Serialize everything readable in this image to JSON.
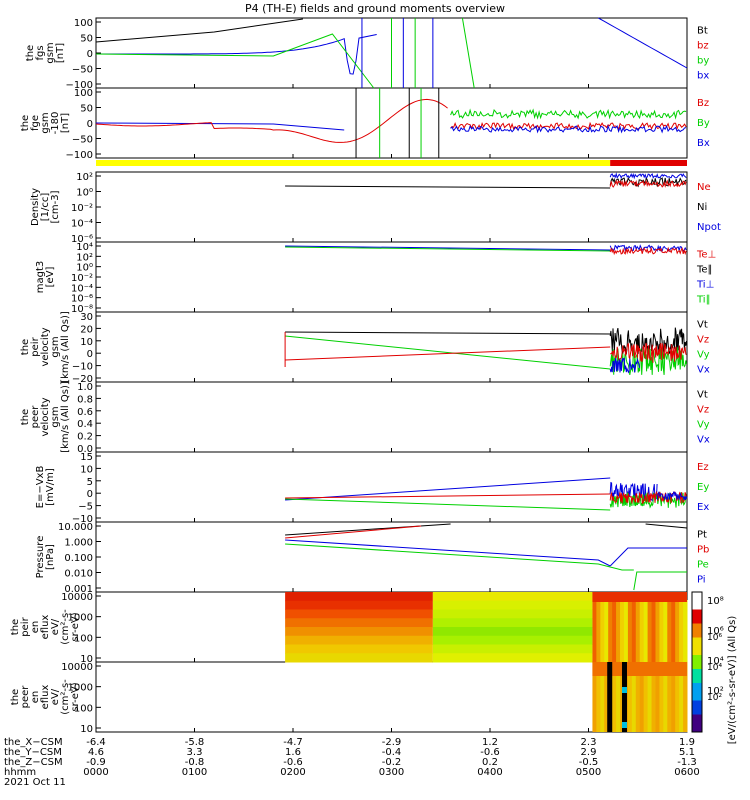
{
  "title": "P4 (TH-E) fields and ground moments overview",
  "colors": {
    "black": "#000000",
    "red": "#e00000",
    "green": "#00d000",
    "blue": "#0000e0"
  },
  "chart_data": [
    {
      "type": "line",
      "panel": "fgs",
      "ylabel_lines": [
        "the",
        "fgs",
        "gsm",
        "[nT]"
      ],
      "yticks": [
        "100",
        "50",
        "0",
        "−50",
        "−100"
      ],
      "legend": [
        {
          "text": "Bt",
          "color": "black"
        },
        {
          "text": "bz",
          "color": "red"
        },
        {
          "text": "by",
          "color": "green"
        },
        {
          "text": "bx",
          "color": "blue"
        }
      ]
    },
    {
      "type": "line",
      "panel": "fge",
      "ylabel_lines": [
        "the",
        "fge",
        "gsm",
        "-180",
        "[nT]"
      ],
      "yticks": [
        "100",
        "50",
        "0",
        "−50",
        "−100"
      ],
      "legend": [
        {
          "text": "Bz",
          "color": "red"
        },
        {
          "text": "By",
          "color": "green"
        },
        {
          "text": "Bx",
          "color": "blue"
        }
      ]
    },
    {
      "type": "line",
      "panel": "density",
      "ylabel_lines": [
        "Density",
        "[1/cc]",
        "[cm-3]"
      ],
      "yticks": [
        "10²",
        "10⁰",
        "10⁻²",
        "10⁻⁴",
        "10⁻⁶"
      ],
      "ylog": true,
      "legend": [
        {
          "text": "Ne",
          "color": "red"
        },
        {
          "text": "Ni",
          "color": "black"
        },
        {
          "text": "Npot",
          "color": "blue"
        }
      ]
    },
    {
      "type": "line",
      "panel": "temp",
      "ylabel_lines": [
        "magt3",
        "[eV]"
      ],
      "yticks": [
        "10⁴",
        "10²",
        "10⁰",
        "10⁻²",
        "10⁻⁴",
        "10⁻⁶",
        "10⁻⁸"
      ],
      "ylog": true,
      "legend": [
        {
          "text": "Te⊥",
          "color": "red"
        },
        {
          "text": "Te∥",
          "color": "black"
        },
        {
          "text": "Ti⊥",
          "color": "blue"
        },
        {
          "text": "Ti∥",
          "color": "green"
        }
      ]
    },
    {
      "type": "line",
      "panel": "peir-velocity",
      "ylabel_lines": [
        "the",
        "peir",
        "velocity",
        "gsm",
        "[km/s (All Qs)]"
      ],
      "yticks": [
        "30",
        "20",
        "10",
        "0",
        "−10",
        "−20"
      ],
      "legend": [
        {
          "text": "Vt",
          "color": "black"
        },
        {
          "text": "Vz",
          "color": "red"
        },
        {
          "text": "Vy",
          "color": "green"
        },
        {
          "text": "Vx",
          "color": "blue"
        }
      ]
    },
    {
      "type": "line",
      "panel": "peer-velocity",
      "ylabel_lines": [
        "the",
        "peer",
        "velocity",
        "gsm",
        "[km/s (All Qs)]"
      ],
      "yticks": [
        "1.0",
        "0.8",
        "0.6",
        "0.4",
        "0.2",
        "0.0"
      ],
      "legend": [
        {
          "text": "Vt",
          "color": "black"
        },
        {
          "text": "Vz",
          "color": "red"
        },
        {
          "text": "Vy",
          "color": "green"
        },
        {
          "text": "Vx",
          "color": "blue"
        }
      ]
    },
    {
      "type": "line",
      "panel": "efield",
      "ylabel_lines": [
        "E=−VxB",
        "[mV/m]"
      ],
      "yticks": [
        "15",
        "10",
        "5",
        "0",
        "−5",
        "−10"
      ],
      "legend": [
        {
          "text": "Ez",
          "color": "red"
        },
        {
          "text": "Ey",
          "color": "green"
        },
        {
          "text": "Ex",
          "color": "blue"
        }
      ]
    },
    {
      "type": "line",
      "panel": "pressure",
      "ylabel_lines": [
        "Pressure",
        "[nPa]"
      ],
      "yticks": [
        "10.000",
        "1.000",
        "0.100",
        "0.010",
        "0.001"
      ],
      "ylog": true,
      "legend": [
        {
          "text": "Pt",
          "color": "black"
        },
        {
          "text": "Pb",
          "color": "red"
        },
        {
          "text": "Pe",
          "color": "green"
        },
        {
          "text": "Pi",
          "color": "blue"
        }
      ]
    },
    {
      "type": "heatmap",
      "panel": "peir-en",
      "ylabel_lines": [
        "the",
        "peir",
        "en",
        "eflux",
        "eV/",
        "(cm²-s-",
        "sr-eV)"
      ],
      "yticks": [
        "10000",
        "1000",
        "100",
        "10"
      ]
    },
    {
      "type": "heatmap",
      "panel": "peer-en",
      "ylabel_lines": [
        "the",
        "peer",
        "en",
        "eflux",
        "eV/",
        "(cm²-s-",
        "sr-eV)"
      ],
      "yticks": [
        "10000",
        "1000",
        "100",
        "10"
      ]
    }
  ],
  "colorbar": {
    "ticks": [
      "10⁸",
      "10⁶",
      "10⁴",
      "10²"
    ],
    "label": "[eV/(cm²-s-sr-eV)] (All Qs)"
  },
  "xaxis": {
    "row_labels": [
      "the_X−CSM",
      "the_Y−CSM",
      "the_Z−CSM",
      "hhmm",
      "2021 Oct 11"
    ],
    "rows": [
      [
        "-6.4",
        "-5.8",
        "-4.7",
        "-2.9",
        "1.2",
        "2.3",
        "1.9"
      ],
      [
        "4.6",
        "3.3",
        "1.6",
        "-0.4",
        "-0.6",
        "2.9",
        "5.1"
      ],
      [
        "-0.9",
        "-0.8",
        "-0.6",
        "-0.2",
        "0.2",
        "-0.5",
        "-1.3"
      ],
      [
        "0000",
        "0100",
        "0200",
        "0300",
        "0400",
        "0500",
        "0600"
      ]
    ]
  }
}
